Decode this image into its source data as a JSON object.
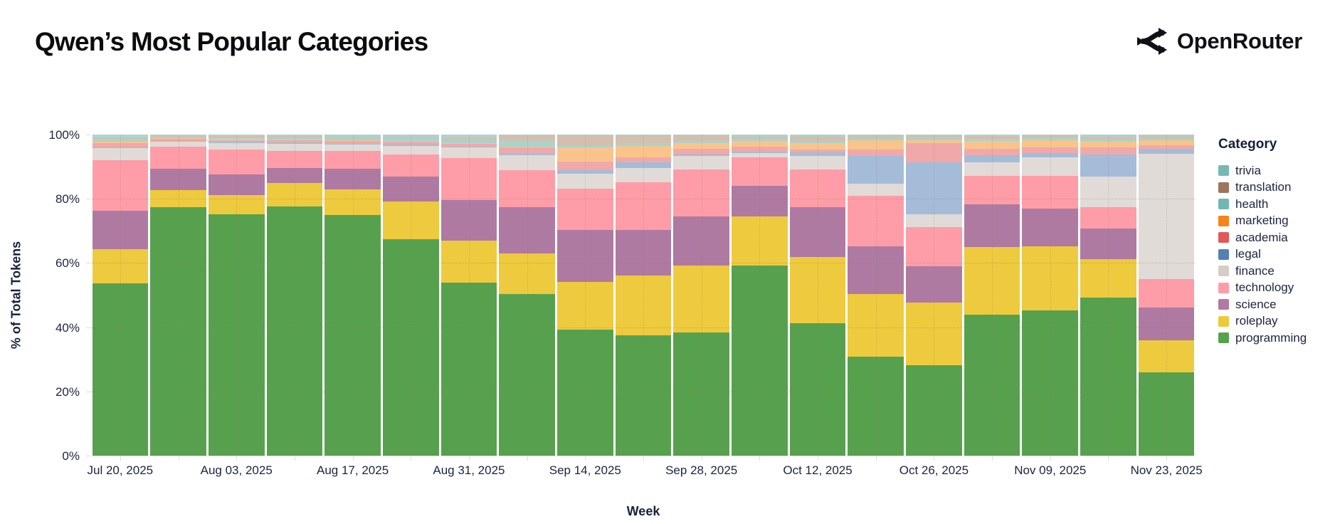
{
  "page": {
    "title": "Qwen’s Most Popular Categories",
    "brand": "OpenRouter"
  },
  "chart_data": {
    "type": "bar",
    "variant": "stacked-normalized",
    "title": "Qwen’s Most Popular Categories",
    "xlabel": "Week",
    "ylabel": "% of Total Tokens",
    "ylim": [
      0,
      100
    ],
    "grid": "dotted",
    "legend_title": "Category",
    "legend_position": "right",
    "y_ticks": [
      "0%",
      "20%",
      "40%",
      "60%",
      "80%",
      "100%"
    ],
    "x": [
      "Jul 20, 2025",
      "Jul 27, 2025",
      "Aug 03, 2025",
      "Aug 10, 2025",
      "Aug 17, 2025",
      "Aug 24, 2025",
      "Aug 31, 2025",
      "Sep 07, 2025",
      "Sep 14, 2025",
      "Sep 21, 2025",
      "Sep 28, 2025",
      "Oct 05, 2025",
      "Oct 12, 2025",
      "Oct 19, 2025",
      "Oct 26, 2025",
      "Nov 02, 2025",
      "Nov 09, 2025",
      "Nov 16, 2025",
      "Nov 23, 2025"
    ],
    "x_tick_shown_every": 2,
    "stack_order_bottom_to_top": [
      "programming",
      "roleplay",
      "science",
      "technology",
      "finance",
      "legal",
      "academia",
      "marketing",
      "health",
      "translation",
      "trivia"
    ],
    "series": [
      {
        "name": "trivia",
        "bar_color": "#aed3cf",
        "legend_color": "#76b9b2",
        "values": [
          0.9,
          0.4,
          0.5,
          0.5,
          0.6,
          0.6,
          0.8,
          0.3,
          0.2,
          0.3,
          0.2,
          0.6,
          0.6,
          0.2,
          0.3,
          0.4,
          0.2,
          0.6,
          0.3
        ]
      },
      {
        "name": "translation",
        "bar_color": "#d2bfae",
        "legend_color": "#9d755d",
        "values": [
          0.4,
          0.3,
          0.3,
          0.4,
          0.4,
          0.5,
          1.0,
          1.7,
          3.3,
          2.3,
          1.9,
          0.8,
          1.5,
          1.0,
          0.8,
          1.0,
          0.6,
          1.0,
          0.8
        ]
      },
      {
        "name": "health",
        "bar_color": "#a6d4cf",
        "legend_color": "#72b7b2",
        "values": [
          0.9,
          0.5,
          0.6,
          0.6,
          0.7,
          0.8,
          0.8,
          1.8,
          0.5,
          1.0,
          0.5,
          0.6,
          0.5,
          0.6,
          0.6,
          0.5,
          0.9,
          0.6,
          0.6
        ]
      },
      {
        "name": "marketing",
        "bar_color": "#f9c48b",
        "legend_color": "#f58518",
        "values": [
          0.5,
          0.2,
          0.3,
          0.3,
          0.3,
          0.4,
          0.3,
          0.2,
          4.3,
          3.4,
          1.8,
          1.8,
          2.0,
          2.8,
          0.9,
          2.6,
          2.3,
          1.8,
          1.6
        ]
      },
      {
        "name": "academia",
        "bar_color": "#f0a9a8",
        "legend_color": "#e45756",
        "values": [
          1.2,
          0.5,
          0.6,
          0.7,
          0.8,
          0.9,
          0.8,
          1.9,
          2.8,
          1.6,
          1.7,
          1.5,
          1.0,
          2.0,
          6.1,
          2.0,
          1.8,
          2.1,
          1.1
        ]
      },
      {
        "name": "legal",
        "bar_color": "#a4bcd8",
        "legend_color": "#5580b1",
        "values": [
          0.4,
          0.2,
          0.3,
          0.3,
          0.3,
          0.3,
          0.3,
          0.5,
          1.0,
          1.9,
          0.5,
          0.4,
          1.0,
          8.6,
          16.1,
          2.2,
          1.2,
          7.0,
          1.5
        ]
      },
      {
        "name": "finance",
        "bar_color": "#e0dbd7",
        "legend_color": "#d5cec6",
        "values": [
          3.7,
          1.6,
          2.1,
          2.2,
          1.9,
          2.6,
          3.4,
          4.7,
          4.7,
          4.4,
          4.2,
          1.3,
          4.2,
          3.9,
          4.1,
          4.1,
          5.8,
          9.4,
          39.0
        ]
      },
      {
        "name": "technology",
        "bar_color": "#fe9da7",
        "legend_color": "#ff9da7",
        "values": [
          15.7,
          7.0,
          7.8,
          5.4,
          5.7,
          7.0,
          12.9,
          11.4,
          12.8,
          14.8,
          14.8,
          8.9,
          11.8,
          15.7,
          12.1,
          9.0,
          10.2,
          6.7,
          8.9
        ]
      },
      {
        "name": "science",
        "bar_color": "#ae7aa2",
        "legend_color": "#b279a2",
        "values": [
          12.0,
          6.5,
          6.4,
          4.7,
          6.4,
          7.8,
          12.8,
          14.5,
          16.4,
          14.3,
          15.2,
          9.6,
          15.5,
          14.8,
          11.3,
          13.3,
          11.8,
          9.6,
          10.3
        ]
      },
      {
        "name": "roleplay",
        "bar_color": "#eeca3e",
        "legend_color": "#eeca3b",
        "values": [
          10.7,
          5.4,
          5.9,
          7.4,
          7.9,
          11.7,
          13.1,
          12.7,
          14.8,
          18.5,
          20.8,
          15.2,
          20.7,
          19.5,
          19.6,
          21.1,
          20.0,
          12.0,
          10.0
        ]
      },
      {
        "name": "programming",
        "bar_color": "#57a14e",
        "legend_color": "#54a24b",
        "values": [
          53.6,
          77.4,
          75.2,
          77.5,
          75.0,
          67.4,
          53.8,
          50.3,
          39.2,
          37.5,
          38.4,
          59.3,
          41.2,
          30.9,
          28.1,
          43.8,
          45.2,
          49.2,
          25.9
        ]
      }
    ]
  }
}
